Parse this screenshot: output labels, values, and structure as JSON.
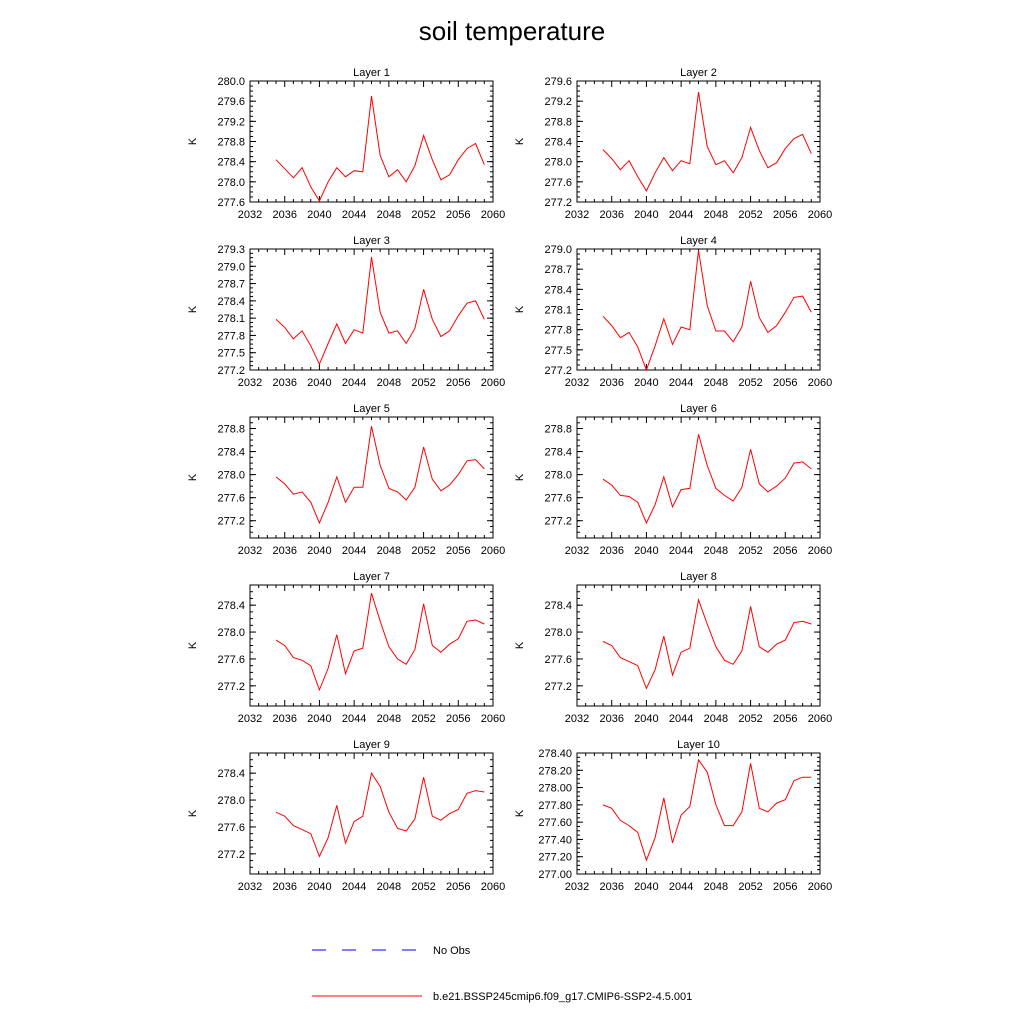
{
  "title": "soil temperature",
  "colors": {
    "model": "#ff0000",
    "obs": "#0000ff"
  },
  "legend": {
    "placement": "bottom",
    "entries": [
      {
        "label": "No Obs",
        "style": "dashed",
        "color": "#0000ff"
      },
      {
        "label": "b.e21.BSSP245cmip6.f09_g17.CMIP6-SSP2-4.5.001",
        "style": "solid",
        "color": "#ff0000"
      }
    ]
  },
  "chart_data": [
    {
      "type": "line",
      "title": "Layer 1",
      "ylabel": "K",
      "xlim": [
        2032,
        2060
      ],
      "xticks": [
        "2032",
        "2036",
        "2040",
        "2044",
        "2048",
        "2052",
        "2056",
        "2060"
      ],
      "ylim": [
        277.6,
        280.0
      ],
      "yticks": [
        "277.6",
        "278.0",
        "278.4",
        "278.8",
        "279.2",
        "279.6",
        "280.0"
      ],
      "series": [
        {
          "x": [
            2035,
            2036,
            2037,
            2038,
            2039,
            2040,
            2041,
            2042,
            2043,
            2044,
            2045,
            2046,
            2047,
            2048,
            2049,
            2050,
            2051,
            2052,
            2053,
            2054,
            2055,
            2056,
            2057,
            2058,
            2059
          ],
          "values": [
            278.44,
            278.26,
            278.08,
            278.28,
            277.9,
            277.62,
            278.0,
            278.28,
            278.1,
            278.22,
            278.2,
            279.7,
            278.52,
            278.1,
            278.24,
            278.0,
            278.32,
            278.92,
            278.44,
            278.04,
            278.14,
            278.44,
            278.66,
            278.76,
            278.34
          ]
        }
      ]
    },
    {
      "type": "line",
      "title": "Layer 2",
      "ylabel": "K",
      "xlim": [
        2032,
        2060
      ],
      "xticks": [
        "2032",
        "2036",
        "2040",
        "2044",
        "2048",
        "2052",
        "2056",
        "2060"
      ],
      "ylim": [
        277.2,
        279.6
      ],
      "yticks": [
        "277.2",
        "277.6",
        "278.0",
        "278.4",
        "278.8",
        "279.2",
        "279.6"
      ],
      "series": [
        {
          "x": [
            2035,
            2036,
            2037,
            2038,
            2039,
            2040,
            2041,
            2042,
            2043,
            2044,
            2045,
            2046,
            2047,
            2048,
            2049,
            2050,
            2051,
            2052,
            2053,
            2054,
            2055,
            2056,
            2057,
            2058,
            2059
          ],
          "values": [
            278.24,
            278.06,
            277.84,
            278.02,
            277.7,
            277.42,
            277.78,
            278.08,
            277.82,
            278.02,
            277.96,
            279.38,
            278.3,
            277.94,
            278.02,
            277.78,
            278.08,
            278.68,
            278.22,
            277.88,
            277.98,
            278.26,
            278.46,
            278.54,
            278.16
          ]
        }
      ]
    },
    {
      "type": "line",
      "title": "Layer 3",
      "ylabel": "K",
      "xlim": [
        2032,
        2060
      ],
      "xticks": [
        "2032",
        "2036",
        "2040",
        "2044",
        "2048",
        "2052",
        "2056",
        "2060"
      ],
      "ylim": [
        277.2,
        279.3
      ],
      "yticks": [
        "277.2",
        "277.5",
        "277.8",
        "278.1",
        "278.4",
        "278.7",
        "279.0",
        "279.3"
      ],
      "series": [
        {
          "x": [
            2035,
            2036,
            2037,
            2038,
            2039,
            2040,
            2041,
            2042,
            2043,
            2044,
            2045,
            2046,
            2047,
            2048,
            2049,
            2050,
            2051,
            2052,
            2053,
            2054,
            2055,
            2056,
            2057,
            2058,
            2059
          ],
          "values": [
            278.08,
            277.94,
            277.74,
            277.88,
            277.62,
            277.3,
            277.66,
            278.0,
            277.66,
            277.9,
            277.84,
            279.16,
            278.2,
            277.84,
            277.88,
            277.66,
            277.92,
            278.6,
            278.08,
            277.78,
            277.88,
            278.14,
            278.36,
            278.4,
            278.08
          ]
        }
      ]
    },
    {
      "type": "line",
      "title": "Layer 4",
      "ylabel": "K",
      "xlim": [
        2032,
        2060
      ],
      "xticks": [
        "2032",
        "2036",
        "2040",
        "2044",
        "2048",
        "2052",
        "2056",
        "2060"
      ],
      "ylim": [
        277.2,
        279.0
      ],
      "yticks": [
        "277.2",
        "277.5",
        "277.8",
        "278.1",
        "278.4",
        "278.7",
        "279.0"
      ],
      "series": [
        {
          "x": [
            2035,
            2036,
            2037,
            2038,
            2039,
            2040,
            2041,
            2042,
            2043,
            2044,
            2045,
            2046,
            2047,
            2048,
            2049,
            2050,
            2051,
            2052,
            2053,
            2054,
            2055,
            2056,
            2057,
            2058,
            2059
          ],
          "values": [
            278.0,
            277.86,
            277.68,
            277.76,
            277.54,
            277.2,
            277.56,
            277.96,
            277.58,
            277.84,
            277.8,
            278.98,
            278.16,
            277.78,
            277.78,
            277.62,
            277.84,
            278.52,
            277.98,
            277.76,
            277.86,
            278.06,
            278.28,
            278.3,
            278.06
          ]
        }
      ]
    },
    {
      "type": "line",
      "title": "Layer 5",
      "ylabel": "K",
      "xlim": [
        2032,
        2060
      ],
      "xticks": [
        "2032",
        "2036",
        "2040",
        "2044",
        "2048",
        "2052",
        "2056",
        "2060"
      ],
      "ylim": [
        276.9,
        279.0
      ],
      "yticks": [
        "277.2",
        "277.6",
        "278.0",
        "278.4",
        "278.8"
      ],
      "series": [
        {
          "x": [
            2035,
            2036,
            2037,
            2038,
            2039,
            2040,
            2041,
            2042,
            2043,
            2044,
            2045,
            2046,
            2047,
            2048,
            2049,
            2050,
            2051,
            2052,
            2053,
            2054,
            2055,
            2056,
            2057,
            2058,
            2059
          ],
          "values": [
            277.96,
            277.84,
            277.66,
            277.7,
            277.52,
            277.16,
            277.52,
            277.96,
            277.52,
            277.78,
            277.78,
            278.84,
            278.16,
            277.76,
            277.7,
            277.56,
            277.78,
            278.48,
            277.92,
            277.72,
            277.82,
            278.0,
            278.24,
            278.26,
            278.1
          ]
        }
      ]
    },
    {
      "type": "line",
      "title": "Layer 6",
      "ylabel": "K",
      "xlim": [
        2032,
        2060
      ],
      "xticks": [
        "2032",
        "2036",
        "2040",
        "2044",
        "2048",
        "2052",
        "2056",
        "2060"
      ],
      "ylim": [
        276.9,
        279.0
      ],
      "yticks": [
        "277.2",
        "277.6",
        "278.0",
        "278.4",
        "278.8"
      ],
      "series": [
        {
          "x": [
            2035,
            2036,
            2037,
            2038,
            2039,
            2040,
            2041,
            2042,
            2043,
            2044,
            2045,
            2046,
            2047,
            2048,
            2049,
            2050,
            2051,
            2052,
            2053,
            2054,
            2055,
            2056,
            2057,
            2058,
            2059
          ],
          "values": [
            277.92,
            277.82,
            277.64,
            277.62,
            277.52,
            277.16,
            277.48,
            277.96,
            277.44,
            277.74,
            277.76,
            278.7,
            278.16,
            277.76,
            277.64,
            277.54,
            277.78,
            278.44,
            277.84,
            277.7,
            277.8,
            277.94,
            278.2,
            278.22,
            278.1
          ]
        }
      ]
    },
    {
      "type": "line",
      "title": "Layer 7",
      "ylabel": "K",
      "xlim": [
        2032,
        2060
      ],
      "xticks": [
        "2032",
        "2036",
        "2040",
        "2044",
        "2048",
        "2052",
        "2056",
        "2060"
      ],
      "ylim": [
        276.9,
        278.7
      ],
      "yticks": [
        "277.2",
        "277.6",
        "278.0",
        "278.4"
      ],
      "series": [
        {
          "x": [
            2035,
            2036,
            2037,
            2038,
            2039,
            2040,
            2041,
            2042,
            2043,
            2044,
            2045,
            2046,
            2047,
            2048,
            2049,
            2050,
            2051,
            2052,
            2053,
            2054,
            2055,
            2056,
            2057,
            2058,
            2059
          ],
          "values": [
            277.88,
            277.8,
            277.62,
            277.58,
            277.5,
            277.14,
            277.46,
            277.96,
            277.38,
            277.72,
            277.76,
            278.58,
            278.16,
            277.78,
            277.6,
            277.52,
            277.74,
            278.42,
            277.8,
            277.7,
            277.82,
            277.9,
            278.16,
            278.18,
            278.12
          ]
        }
      ]
    },
    {
      "type": "line",
      "title": "Layer 8",
      "ylabel": "K",
      "xlim": [
        2032,
        2060
      ],
      "xticks": [
        "2032",
        "2036",
        "2040",
        "2044",
        "2048",
        "2052",
        "2056",
        "2060"
      ],
      "ylim": [
        276.9,
        278.7
      ],
      "yticks": [
        "277.2",
        "277.6",
        "278.0",
        "278.4"
      ],
      "series": [
        {
          "x": [
            2035,
            2036,
            2037,
            2038,
            2039,
            2040,
            2041,
            2042,
            2043,
            2044,
            2045,
            2046,
            2047,
            2048,
            2049,
            2050,
            2051,
            2052,
            2053,
            2054,
            2055,
            2056,
            2057,
            2058,
            2059
          ],
          "values": [
            277.86,
            277.8,
            277.62,
            277.56,
            277.5,
            277.16,
            277.44,
            277.94,
            277.36,
            277.7,
            277.76,
            278.48,
            278.12,
            277.78,
            277.58,
            277.52,
            277.72,
            278.38,
            277.78,
            277.7,
            277.82,
            277.88,
            278.14,
            278.16,
            278.12
          ]
        }
      ]
    },
    {
      "type": "line",
      "title": "Layer 9",
      "ylabel": "K",
      "xlim": [
        2032,
        2060
      ],
      "xticks": [
        "2032",
        "2036",
        "2040",
        "2044",
        "2048",
        "2052",
        "2056",
        "2060"
      ],
      "ylim": [
        276.9,
        278.7
      ],
      "yticks": [
        "277.2",
        "277.6",
        "278.0",
        "278.4"
      ],
      "series": [
        {
          "x": [
            2035,
            2036,
            2037,
            2038,
            2039,
            2040,
            2041,
            2042,
            2043,
            2044,
            2045,
            2046,
            2047,
            2048,
            2049,
            2050,
            2051,
            2052,
            2053,
            2054,
            2055,
            2056,
            2057,
            2058,
            2059
          ],
          "values": [
            277.82,
            277.76,
            277.62,
            277.56,
            277.5,
            277.16,
            277.44,
            277.92,
            277.36,
            277.68,
            277.76,
            278.4,
            278.2,
            277.82,
            277.58,
            277.54,
            277.72,
            278.34,
            277.76,
            277.7,
            277.8,
            277.86,
            278.1,
            278.14,
            278.12
          ]
        }
      ]
    },
    {
      "type": "line",
      "title": "Layer 10",
      "ylabel": "K",
      "xlim": [
        2032,
        2060
      ],
      "xticks": [
        "2032",
        "2036",
        "2040",
        "2044",
        "2048",
        "2052",
        "2056",
        "2060"
      ],
      "ylim": [
        277.0,
        278.4
      ],
      "yticks": [
        "277.00",
        "277.20",
        "277.40",
        "277.60",
        "277.80",
        "278.00",
        "278.20",
        "278.40"
      ],
      "series": [
        {
          "x": [
            2035,
            2036,
            2037,
            2038,
            2039,
            2040,
            2041,
            2042,
            2043,
            2044,
            2045,
            2046,
            2047,
            2048,
            2049,
            2050,
            2051,
            2052,
            2053,
            2054,
            2055,
            2056,
            2057,
            2058,
            2059
          ],
          "values": [
            277.8,
            277.76,
            277.62,
            277.56,
            277.48,
            277.16,
            277.42,
            277.88,
            277.36,
            277.68,
            277.78,
            278.32,
            278.18,
            277.8,
            277.56,
            277.56,
            277.72,
            278.28,
            277.76,
            277.72,
            277.82,
            277.86,
            278.08,
            278.12,
            278.12
          ]
        }
      ]
    }
  ]
}
